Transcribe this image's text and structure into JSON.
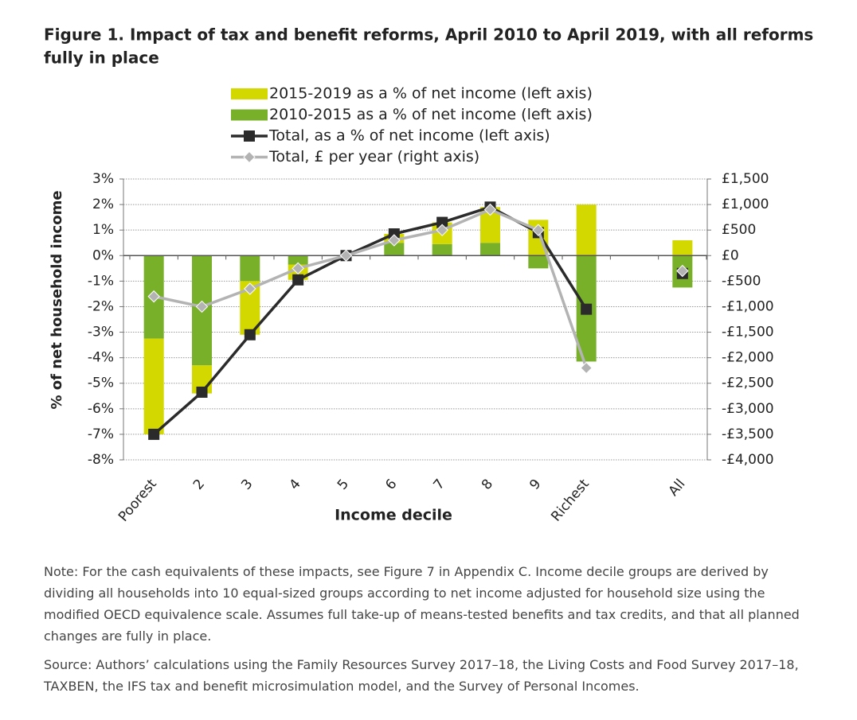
{
  "chart_data": {
    "type": "bar",
    "title": "Figure 1.  Impact of tax and benefit reforms, April 2010 to April 2019, with all reforms",
    "subtitle": "fully in place",
    "xlabel": "Income decile",
    "ylabel": "% of net household income",
    "categories": [
      "Poorest",
      "2",
      "3",
      "4",
      "5",
      "6",
      "7",
      "8",
      "9",
      "Richest",
      null,
      "All"
    ],
    "series": [
      {
        "name": "2015-2019 as a % of net income (left axis)",
        "type": "bar",
        "color": "#d2d800",
        "values": [
          -3.75,
          -1.1,
          -2.1,
          -0.6,
          0.0,
          0.35,
          0.85,
          1.4,
          1.4,
          2.0,
          null,
          0.6
        ]
      },
      {
        "name": "2010-2015 as a % of net income (left axis)",
        "type": "bar",
        "color": "#78b02a",
        "values": [
          -3.25,
          -4.3,
          -1.0,
          -0.35,
          0.0,
          0.5,
          0.45,
          0.5,
          -0.5,
          -4.15,
          null,
          -1.25
        ]
      },
      {
        "name": "Total, as a % of net income (left axis)",
        "type": "line",
        "marker": "square",
        "color": "#2b2b2b",
        "values": [
          -7.0,
          -5.35,
          -3.1,
          -0.95,
          0.0,
          0.85,
          1.3,
          1.9,
          0.9,
          -2.1,
          null,
          -0.7
        ]
      },
      {
        "name": "Total, £ per year (right axis)",
        "type": "line",
        "marker": "diamond",
        "color": "#b3b3b3",
        "axis": "y2",
        "values": [
          -800,
          -1000,
          -650,
          -250,
          0,
          300,
          500,
          900,
          500,
          -2200,
          null,
          -300
        ]
      }
    ],
    "ylim": [
      -8,
      3
    ],
    "yticks": [
      {
        "value": -8,
        "label": "-8%"
      },
      {
        "value": -7,
        "label": "-7%"
      },
      {
        "value": -6,
        "label": "-6%"
      },
      {
        "value": -5,
        "label": "-5%"
      },
      {
        "value": -4,
        "label": "-4%"
      },
      {
        "value": -3,
        "label": "-3%"
      },
      {
        "value": -2,
        "label": "-2%"
      },
      {
        "value": -1,
        "label": "-1%"
      },
      {
        "value": 0,
        "label": "0%"
      },
      {
        "value": 1,
        "label": "1%"
      },
      {
        "value": 2,
        "label": "2%"
      },
      {
        "value": 3,
        "label": "3%"
      }
    ],
    "y2lim": [
      -4000,
      1500
    ],
    "y2ticks": [
      {
        "value": -4000,
        "label": "-£4,000"
      },
      {
        "value": -3500,
        "label": "-£3,500"
      },
      {
        "value": -3000,
        "label": "-£3,000"
      },
      {
        "value": -2500,
        "label": "-£2,500"
      },
      {
        "value": -2000,
        "label": "-£2,000"
      },
      {
        "value": -1500,
        "label": "-£1,500"
      },
      {
        "value": -1000,
        "label": "-£1,000"
      },
      {
        "value": -500,
        "label": "-£500"
      },
      {
        "value": 0,
        "label": "£0"
      },
      {
        "value": 500,
        "label": "£500"
      },
      {
        "value": 1000,
        "label": "£1,000"
      },
      {
        "value": 1500,
        "label": "£1,500"
      }
    ],
    "grid": true
  },
  "note": "Note: For the cash equivalents of these impacts, see Figure 7 in Appendix C. Income decile groups are derived by dividing all households into 10 equal-sized groups according to net income adjusted for household size using the modified OECD equivalence scale. Assumes full take-up of means-tested benefits and tax credits, and that all planned changes are fully in place.",
  "source": "Source: Authors’ calculations using the Family Resources Survey 2017–18, the Living Costs and Food Survey 2017–18, TAXBEN, the IFS tax and benefit microsimulation model, and the Survey of Personal Incomes."
}
